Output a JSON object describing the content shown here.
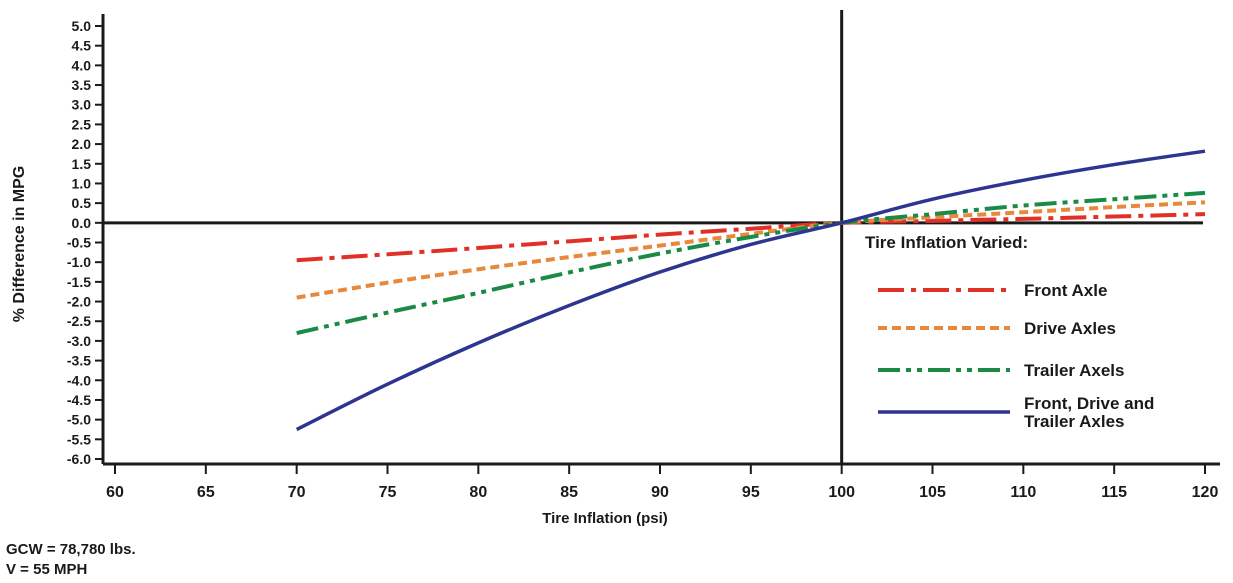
{
  "chart_data": {
    "type": "line",
    "title": "",
    "xlabel": "Tire Inflation (psi)",
    "ylabel": "% Difference in MPG",
    "xlim": [
      60,
      120
    ],
    "ylim": [
      -6.0,
      5.0
    ],
    "x_ticks": [
      "60",
      "65",
      "70",
      "75",
      "80",
      "85",
      "90",
      "95",
      "100",
      "105",
      "110",
      "115",
      "120"
    ],
    "y_ticks": [
      "5.0",
      "4.5",
      "4.0",
      "3.5",
      "3.0",
      "2.5",
      "2.0",
      "1.5",
      "1.0",
      "0.5",
      "0.0",
      "-0.5",
      "-1.0",
      "-1.5",
      "-2.0",
      "-2.5",
      "-3.0",
      "-3.5",
      "-4.0",
      "-4.5",
      "-5.0",
      "-5.5",
      "-6.0"
    ],
    "reference_lines": {
      "x": 100,
      "y": 0.0
    },
    "legend": {
      "title": "Tire Inflation Varied:",
      "placement": "right"
    },
    "series": [
      {
        "name": "Front Axle",
        "color": "#e03128",
        "style": "dash-dot",
        "x": [
          70,
          75,
          80,
          85,
          90,
          95,
          100,
          105,
          110,
          115,
          120
        ],
        "y": [
          -0.95,
          -0.8,
          -0.64,
          -0.47,
          -0.3,
          -0.15,
          0.0,
          0.05,
          0.1,
          0.16,
          0.22
        ]
      },
      {
        "name": "Drive Axles",
        "color": "#e8883a",
        "style": "dotted",
        "x": [
          70,
          75,
          80,
          85,
          90,
          95,
          100,
          105,
          110,
          115,
          120
        ],
        "y": [
          -1.9,
          -1.52,
          -1.18,
          -0.87,
          -0.58,
          -0.28,
          0.0,
          0.14,
          0.27,
          0.4,
          0.52
        ]
      },
      {
        "name": "Trailer Axels",
        "color": "#1a8a46",
        "style": "dash-dot-dot",
        "x": [
          70,
          75,
          80,
          85,
          90,
          95,
          100,
          105,
          110,
          115,
          120
        ],
        "y": [
          -2.8,
          -2.28,
          -1.78,
          -1.26,
          -0.78,
          -0.36,
          0.0,
          0.22,
          0.44,
          0.6,
          0.76
        ]
      },
      {
        "name": "Front, Drive and Trailer Axles",
        "name_lines": [
          "Front, Drive and",
          "Trailer Axles"
        ],
        "color": "#2e3590",
        "style": "solid",
        "x": [
          70,
          75,
          80,
          85,
          90,
          95,
          100,
          105,
          110,
          115,
          120
        ],
        "y": [
          -5.25,
          -4.1,
          -3.05,
          -2.1,
          -1.25,
          -0.55,
          0.0,
          0.6,
          1.08,
          1.48,
          1.82
        ]
      }
    ]
  },
  "notes": {
    "gcw": "GCW = 78,780 lbs.",
    "speed": "V = 55 MPH"
  }
}
